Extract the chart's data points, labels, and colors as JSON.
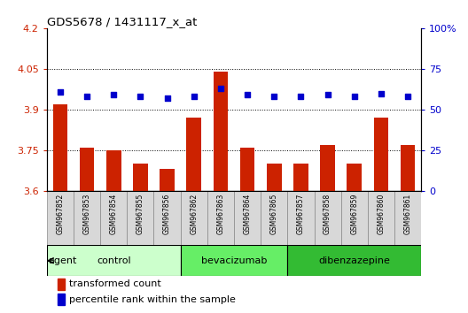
{
  "title": "GDS5678 / 1431117_x_at",
  "samples": [
    "GSM967852",
    "GSM967853",
    "GSM967854",
    "GSM967855",
    "GSM967856",
    "GSM967862",
    "GSM967863",
    "GSM967864",
    "GSM967865",
    "GSM967857",
    "GSM967858",
    "GSM967859",
    "GSM967860",
    "GSM967861"
  ],
  "transformed_counts": [
    3.92,
    3.76,
    3.75,
    3.7,
    3.68,
    3.87,
    4.04,
    3.76,
    3.7,
    3.7,
    3.77,
    3.7,
    3.87,
    3.77
  ],
  "percentile_ranks": [
    61,
    58,
    59,
    58,
    57,
    58,
    63,
    59,
    58,
    58,
    59,
    58,
    60,
    58
  ],
  "groups": [
    {
      "name": "control",
      "indices": [
        0,
        1,
        2,
        3,
        4
      ],
      "color": "#ccffcc"
    },
    {
      "name": "bevacizumab",
      "indices": [
        5,
        6,
        7,
        8
      ],
      "color": "#66ee66"
    },
    {
      "name": "dibenzazepine",
      "indices": [
        9,
        10,
        11,
        12,
        13
      ],
      "color": "#33bb33"
    }
  ],
  "ylim_left": [
    3.6,
    4.2
  ],
  "ylim_right": [
    0,
    100
  ],
  "yticks_left": [
    3.6,
    3.75,
    3.9,
    4.05,
    4.2
  ],
  "yticks_right": [
    0,
    25,
    50,
    75,
    100
  ],
  "ytick_labels_left": [
    "3.6",
    "3.75",
    "3.9",
    "4.05",
    "4.2"
  ],
  "ytick_labels_right": [
    "0",
    "25",
    "50",
    "75",
    "100%"
  ],
  "bar_color": "#cc2200",
  "dot_color": "#0000cc",
  "bar_width": 0.55,
  "grid_yticks": [
    3.75,
    3.9,
    4.05
  ],
  "agent_label": "agent",
  "legend_bar_label": "transformed count",
  "legend_dot_label": "percentile rank within the sample",
  "bg_color": "#f0f0f0",
  "tick_label_bg": "#d8d8d8"
}
